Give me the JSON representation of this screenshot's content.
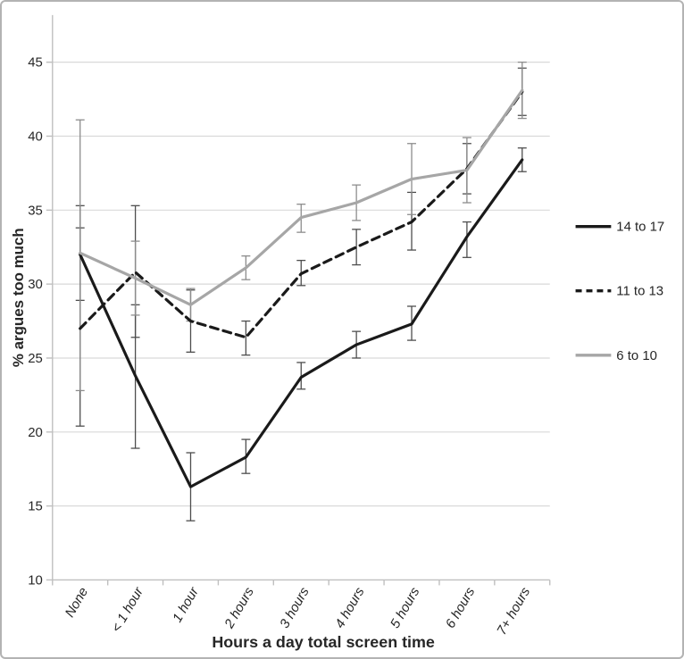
{
  "figure": {
    "background": "#ffffff",
    "border_color": "#b3b3b3",
    "palette": {
      "black_series": "#1a1a1a",
      "gray_series": "#a6a6a6",
      "error_bar_dark": "#4d4d4d",
      "error_bar_gray": "#8c8c8c",
      "gridline": "#d9d9d9",
      "axis_line": "#bfbfbf",
      "text": "#262626"
    }
  },
  "chart_data": {
    "type": "line",
    "title": "",
    "xlabel": "Hours a day total screen time",
    "ylabel": "% argues too much",
    "categories": [
      "None",
      "< 1 hour",
      "1 hour",
      "2 hours",
      "3 hours",
      "4 hours",
      "5 hours",
      "6 hours",
      "7+ hours"
    ],
    "yticks": [
      10,
      15,
      20,
      25,
      30,
      35,
      40,
      45
    ],
    "ylim": [
      10,
      48
    ],
    "grid": true,
    "legend_position": "right",
    "error_bars": true,
    "series": [
      {
        "name": "14 to 17",
        "line_style": "solid",
        "color": "#1a1a1a",
        "error_color": "#4d4d4d",
        "values": [
          32.0,
          23.8,
          16.3,
          18.3,
          23.7,
          25.9,
          27.3,
          33.2,
          38.4
        ],
        "err_low": [
          28.9,
          18.9,
          14.0,
          17.2,
          22.9,
          25.0,
          26.2,
          31.8,
          37.6
        ],
        "err_high": [
          35.3,
          28.6,
          18.6,
          19.5,
          24.7,
          26.8,
          28.5,
          34.2,
          39.2
        ]
      },
      {
        "name": "11 to 13",
        "line_style": "dashed",
        "color": "#1a1a1a",
        "error_color": "#4d4d4d",
        "values": [
          27.0,
          30.8,
          27.5,
          26.4,
          30.7,
          32.5,
          34.2,
          37.8,
          43.0
        ],
        "err_low": [
          20.4,
          26.4,
          25.4,
          25.2,
          29.9,
          31.3,
          32.3,
          36.1,
          41.4
        ],
        "err_high": [
          33.8,
          35.3,
          29.6,
          27.5,
          31.6,
          33.7,
          36.2,
          39.5,
          44.6
        ]
      },
      {
        "name": "6 to 10",
        "line_style": "solid",
        "color": "#a6a6a6",
        "error_color": "#8c8c8c",
        "values": [
          32.1,
          30.4,
          28.6,
          31.1,
          34.5,
          35.5,
          37.1,
          37.7,
          43.1
        ],
        "err_low": [
          22.8,
          27.9,
          27.5,
          30.3,
          33.5,
          34.3,
          34.7,
          35.5,
          41.2
        ],
        "err_high": [
          41.1,
          32.9,
          29.7,
          31.9,
          35.4,
          36.7,
          39.5,
          39.9,
          45.0
        ]
      }
    ]
  }
}
